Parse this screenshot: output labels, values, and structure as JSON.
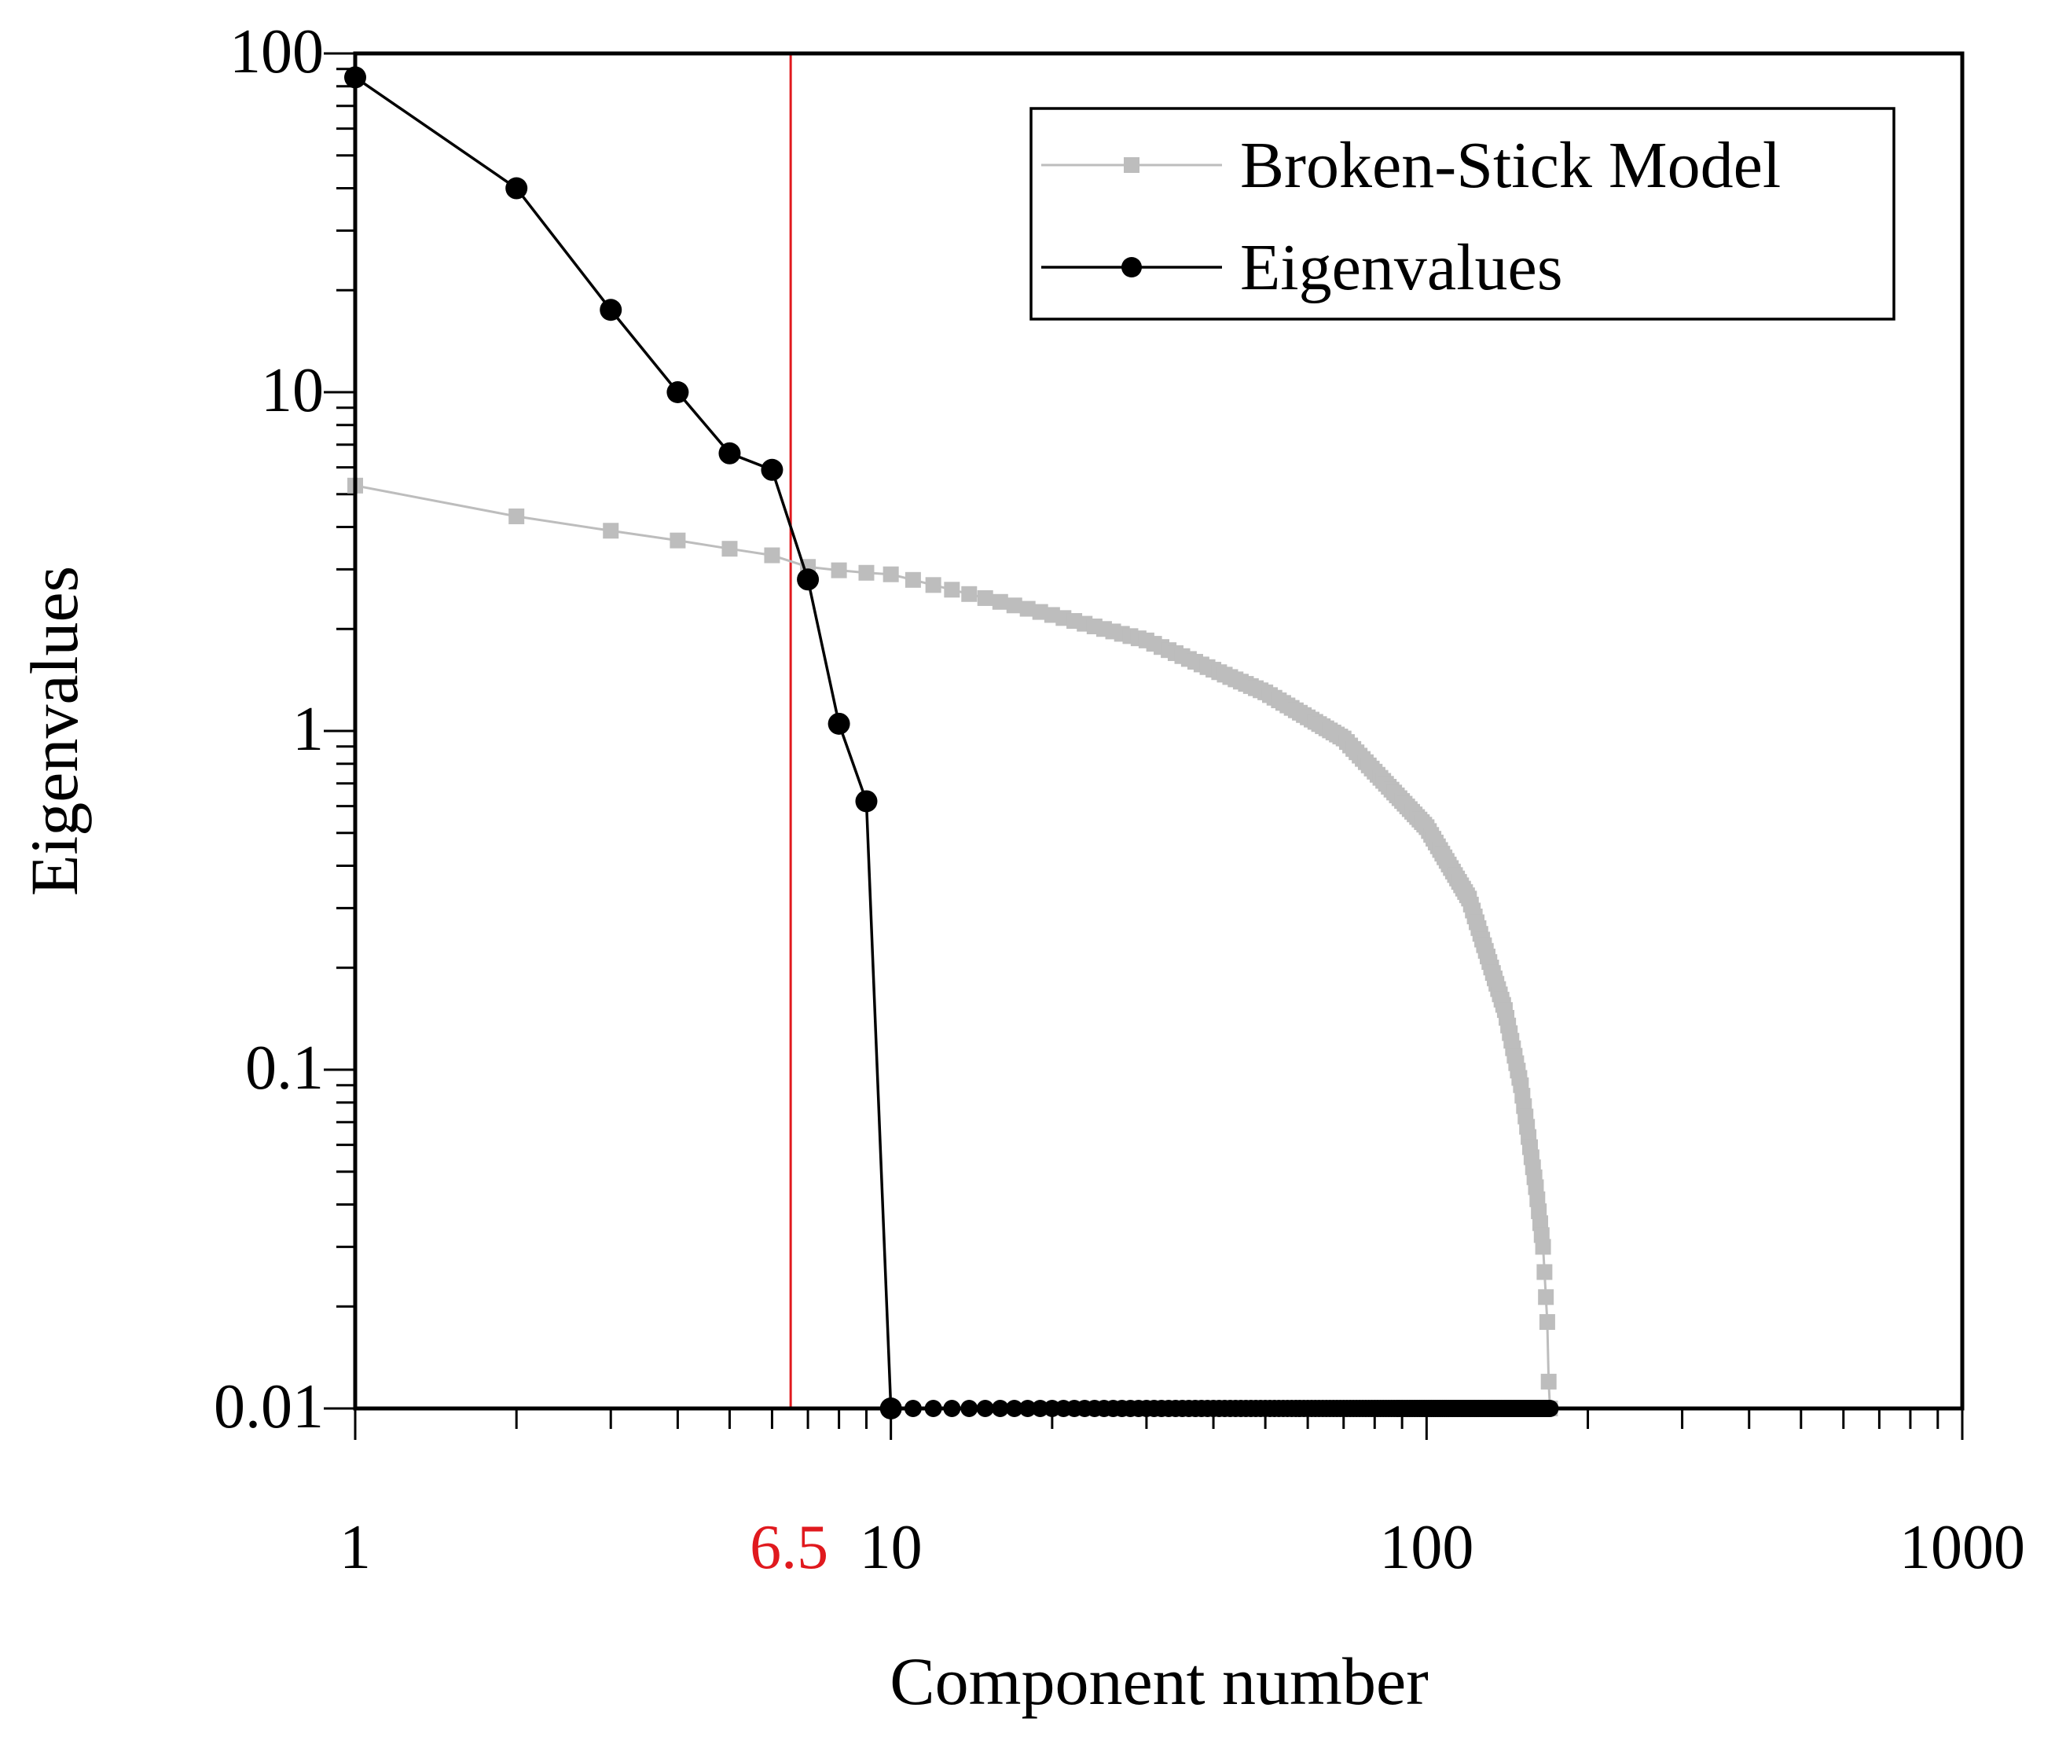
{
  "chart_data": {
    "type": "line",
    "title": "",
    "xlabel": "Component number",
    "ylabel": "Eigenvalues",
    "x_scale": "log",
    "y_scale": "log",
    "xlim": [
      1,
      1000
    ],
    "ylim": [
      0.01,
      100
    ],
    "x_ticks": [
      "1",
      "10",
      "100",
      "1000"
    ],
    "y_ticks": [
      "100",
      "10",
      "1",
      "0.1",
      "0.01"
    ],
    "grid": false,
    "legend_position": "top-right",
    "reference_line": {
      "x": 6.5,
      "label": "6.5",
      "color": "#e0191e"
    },
    "series": [
      {
        "name": "Broken-Stick Model",
        "color": "#bdbdbd",
        "marker": "square",
        "n_components": 170,
        "x": [
          1,
          2,
          3,
          4,
          5,
          6,
          7,
          8,
          9,
          10,
          20,
          30,
          50,
          70,
          100,
          120,
          140,
          150,
          160,
          165,
          168,
          169,
          170
        ],
        "values": [
          5.3,
          4.3,
          3.9,
          3.65,
          3.45,
          3.3,
          3.05,
          2.98,
          2.93,
          2.9,
          2.2,
          1.85,
          1.3,
          0.95,
          0.52,
          0.32,
          0.15,
          0.09,
          0.045,
          0.03,
          0.018,
          0.012,
          0.01
        ]
      },
      {
        "name": "Eigenvalues",
        "color": "#000000",
        "marker": "circle",
        "n_components": 170,
        "x": [
          1,
          2,
          3,
          4,
          5,
          6,
          7,
          8,
          9,
          10
        ],
        "values": [
          85,
          40,
          17.5,
          10,
          6.6,
          5.9,
          2.8,
          1.05,
          0.62,
          0.01
        ],
        "tail_value": 0.01
      }
    ]
  }
}
